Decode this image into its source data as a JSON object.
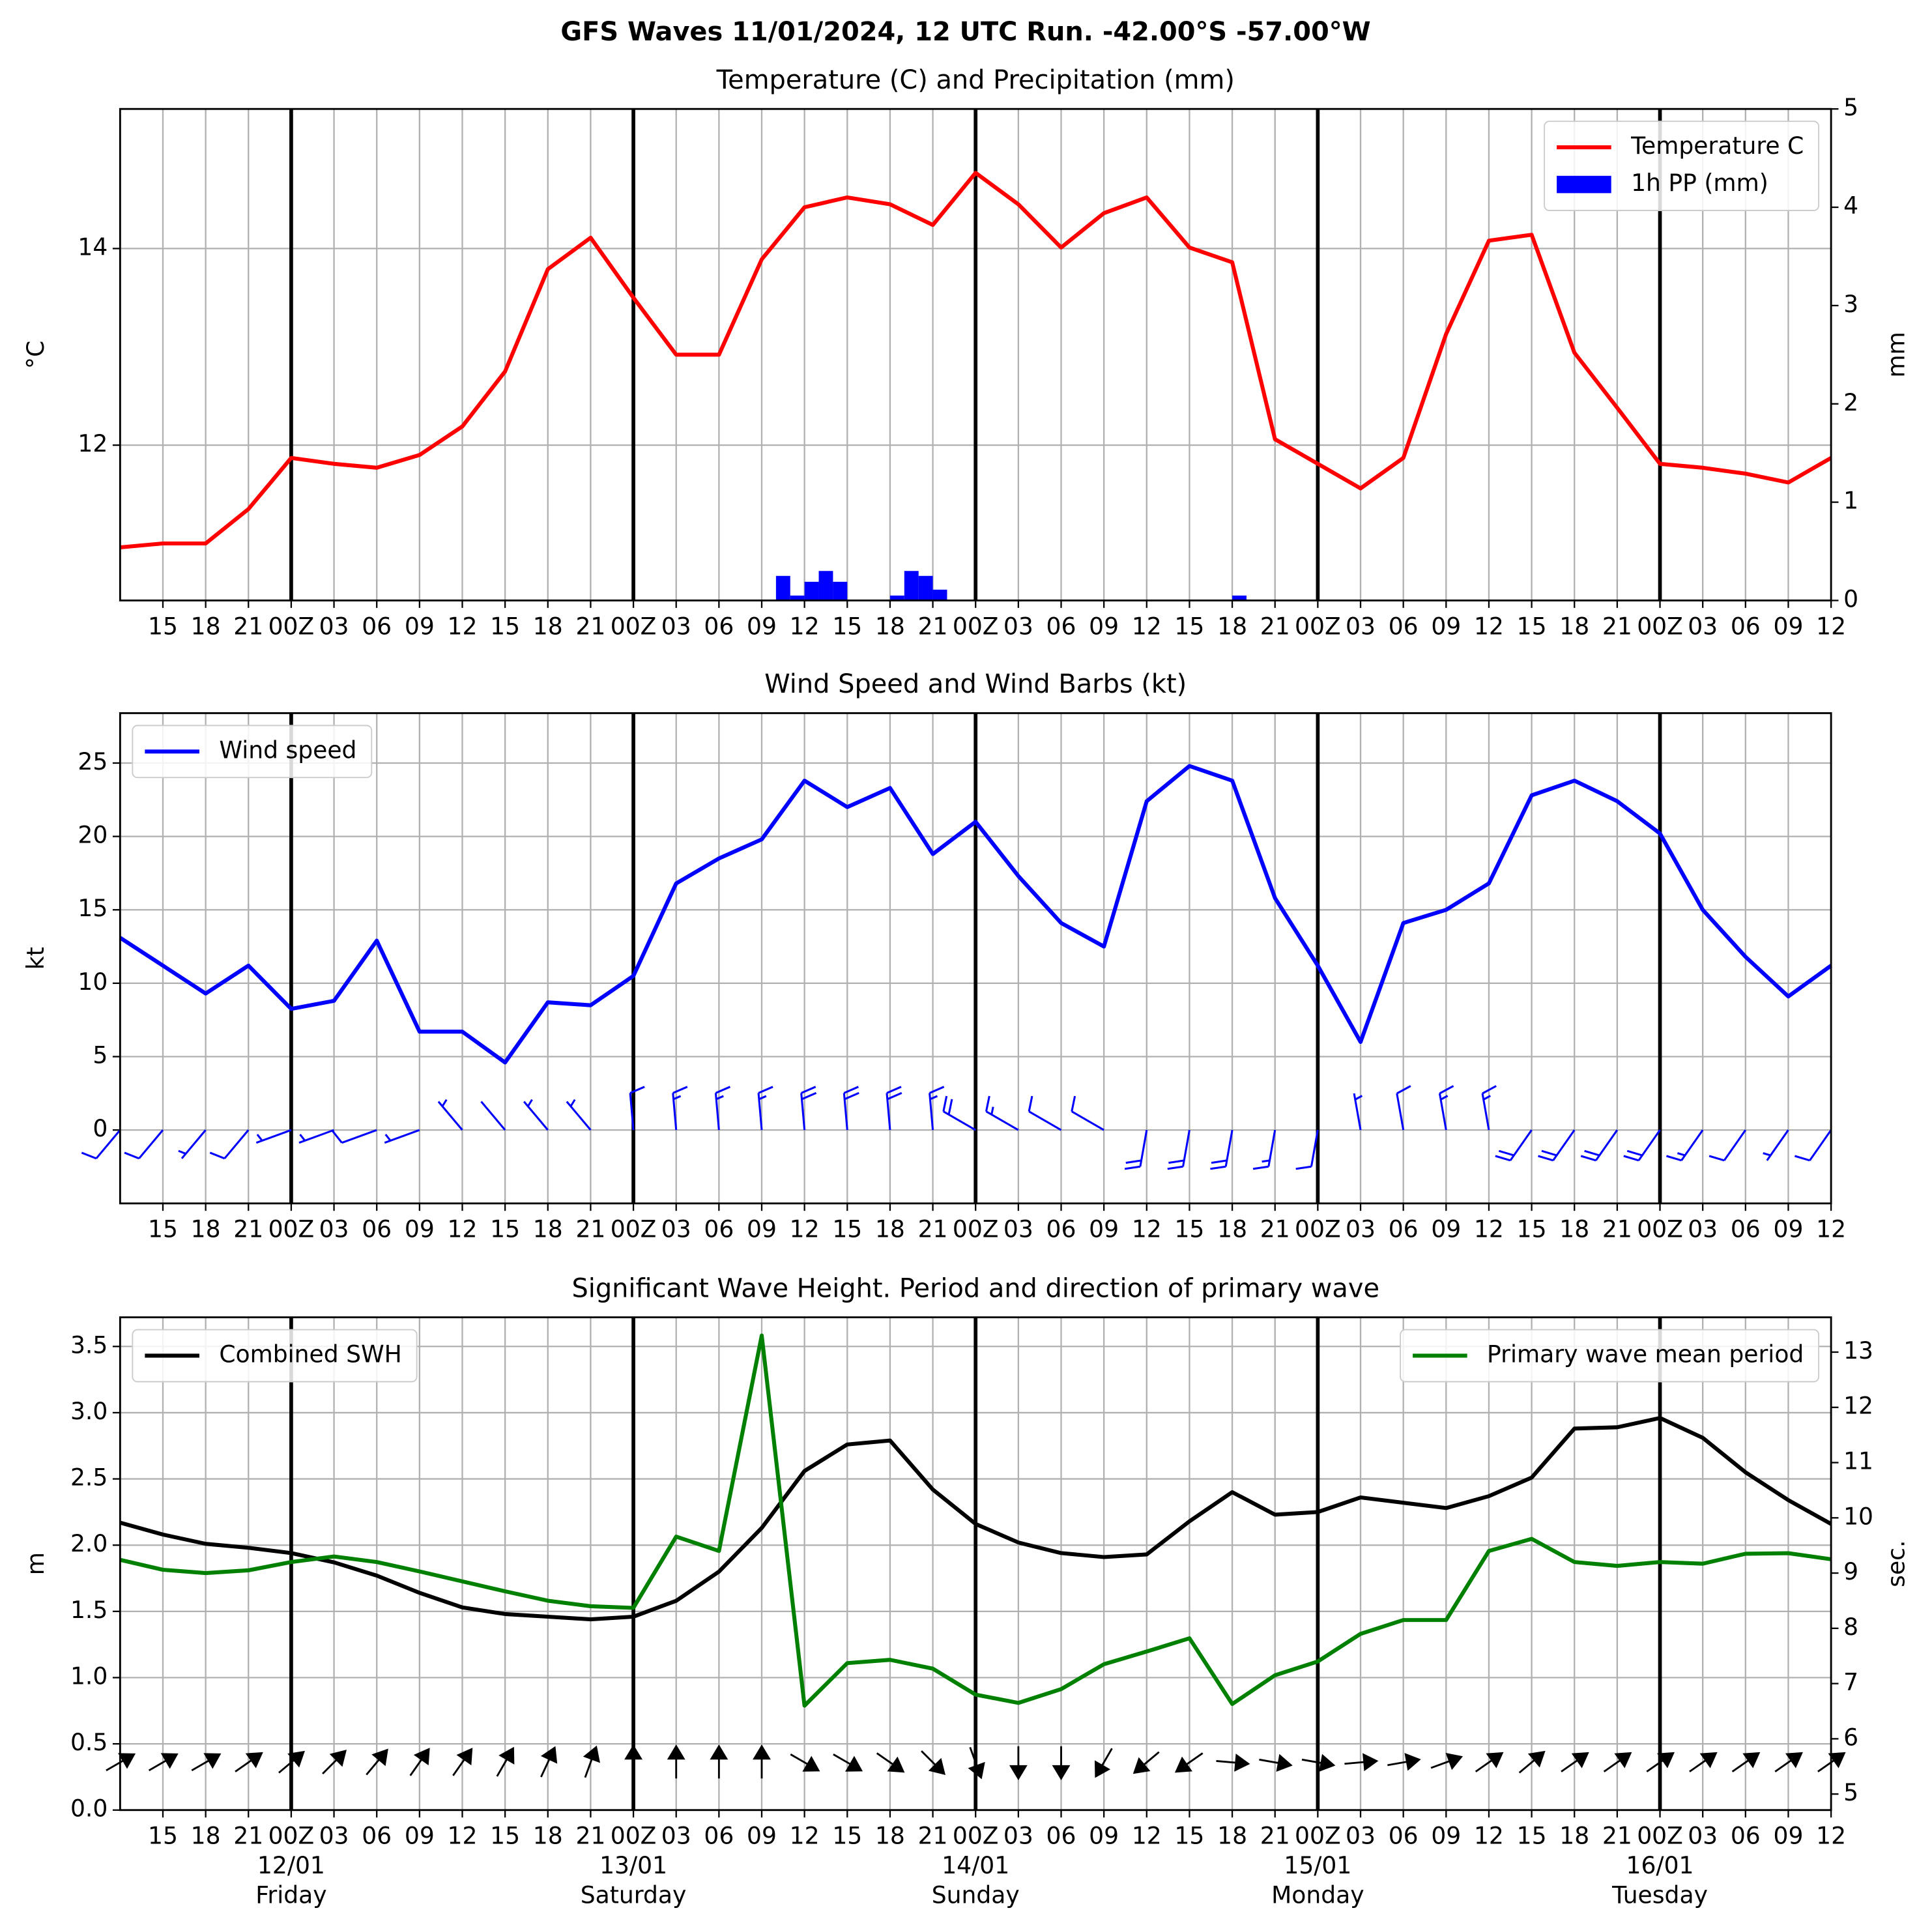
{
  "title": "GFS Waves 11/01/2024, 12 UTC Run. -42.00°S -57.00°W",
  "chart_data": [
    {
      "type": "line",
      "title": "Temperature (C) and Precipitation (mm)",
      "ylabel": "°C",
      "y2label": "mm",
      "x": [
        0,
        3,
        6,
        9,
        12,
        15,
        18,
        21,
        24,
        27,
        30,
        33,
        36,
        39,
        42,
        45,
        48,
        51,
        54,
        57,
        60,
        63,
        66,
        69,
        72,
        75,
        78,
        81,
        84,
        87,
        90,
        93,
        96,
        99,
        102,
        105,
        108,
        111,
        114,
        117,
        120
      ],
      "xlim": [
        0,
        120
      ],
      "xticks": [
        {
          "value": 3,
          "label": "15"
        },
        {
          "value": 6,
          "label": "18"
        },
        {
          "value": 9,
          "label": "21"
        },
        {
          "value": 12,
          "label": "00Z"
        },
        {
          "value": 15,
          "label": "03"
        },
        {
          "value": 18,
          "label": "06"
        },
        {
          "value": 21,
          "label": "09"
        },
        {
          "value": 24,
          "label": "12"
        },
        {
          "value": 27,
          "label": "15"
        },
        {
          "value": 30,
          "label": "18"
        },
        {
          "value": 33,
          "label": "21"
        },
        {
          "value": 36,
          "label": "00Z"
        },
        {
          "value": 39,
          "label": "03"
        },
        {
          "value": 42,
          "label": "06"
        },
        {
          "value": 45,
          "label": "09"
        },
        {
          "value": 48,
          "label": "12"
        },
        {
          "value": 51,
          "label": "15"
        },
        {
          "value": 54,
          "label": "18"
        },
        {
          "value": 57,
          "label": "21"
        },
        {
          "value": 60,
          "label": "00Z"
        },
        {
          "value": 63,
          "label": "03"
        },
        {
          "value": 66,
          "label": "06"
        },
        {
          "value": 69,
          "label": "09"
        },
        {
          "value": 72,
          "label": "12"
        },
        {
          "value": 75,
          "label": "15"
        },
        {
          "value": 78,
          "label": "18"
        },
        {
          "value": 81,
          "label": "21"
        },
        {
          "value": 84,
          "label": "00Z"
        },
        {
          "value": 87,
          "label": "03"
        },
        {
          "value": 90,
          "label": "06"
        },
        {
          "value": 93,
          "label": "09"
        },
        {
          "value": 96,
          "label": "12"
        },
        {
          "value": 99,
          "label": "15"
        },
        {
          "value": 102,
          "label": "18"
        },
        {
          "value": 105,
          "label": "21"
        },
        {
          "value": 108,
          "label": "00Z"
        },
        {
          "value": 111,
          "label": "03"
        },
        {
          "value": 114,
          "label": "06"
        },
        {
          "value": 117,
          "label": "09"
        },
        {
          "value": 120,
          "label": "12"
        }
      ],
      "ylim": [
        10.42,
        15.42
      ],
      "yticks": [
        12,
        14
      ],
      "y2lim": [
        0,
        5
      ],
      "y2ticks": [
        0,
        1,
        2,
        3,
        4,
        5
      ],
      "grid": true,
      "legend": "upper right",
      "series": [
        {
          "name": "Temperature C",
          "color": "#ff0000",
          "type": "line",
          "values": [
            10.96,
            11.0,
            11.0,
            11.35,
            11.87,
            11.81,
            11.77,
            11.9,
            12.19,
            12.75,
            13.79,
            14.11,
            13.5,
            12.92,
            12.92,
            13.89,
            14.42,
            14.52,
            14.45,
            14.24,
            14.77,
            14.45,
            14.01,
            14.36,
            14.52,
            14.01,
            13.86,
            12.06,
            11.81,
            11.56,
            11.87,
            13.13,
            14.08,
            14.14,
            12.94,
            12.38,
            11.81,
            11.77,
            11.71,
            11.62,
            11.87
          ]
        },
        {
          "name": "1h PP (mm)",
          "color": "#0000ff",
          "type": "bar",
          "axis": "y2",
          "x": [
            46,
            47,
            48,
            49,
            50,
            54,
            55,
            56,
            57,
            78
          ],
          "values": [
            0.25,
            0.05,
            0.19,
            0.3,
            0.19,
            0.05,
            0.3,
            0.25,
            0.11,
            0.05
          ]
        }
      ]
    },
    {
      "type": "line",
      "title": "Wind Speed and Wind Barbs (kt)",
      "ylabel": "kt",
      "x": [
        0,
        3,
        6,
        9,
        12,
        15,
        18,
        21,
        24,
        27,
        30,
        33,
        36,
        39,
        42,
        45,
        48,
        51,
        54,
        57,
        60,
        63,
        66,
        69,
        72,
        75,
        78,
        81,
        84,
        87,
        90,
        93,
        96,
        99,
        102,
        105,
        108,
        111,
        114,
        117,
        120
      ],
      "xlim": [
        0,
        120
      ],
      "xticks": [
        {
          "value": 3,
          "label": "15"
        },
        {
          "value": 6,
          "label": "18"
        },
        {
          "value": 9,
          "label": "21"
        },
        {
          "value": 12,
          "label": "00Z"
        },
        {
          "value": 15,
          "label": "03"
        },
        {
          "value": 18,
          "label": "06"
        },
        {
          "value": 21,
          "label": "09"
        },
        {
          "value": 24,
          "label": "12"
        },
        {
          "value": 27,
          "label": "15"
        },
        {
          "value": 30,
          "label": "18"
        },
        {
          "value": 33,
          "label": "21"
        },
        {
          "value": 36,
          "label": "00Z"
        },
        {
          "value": 39,
          "label": "03"
        },
        {
          "value": 42,
          "label": "06"
        },
        {
          "value": 45,
          "label": "09"
        },
        {
          "value": 48,
          "label": "12"
        },
        {
          "value": 51,
          "label": "15"
        },
        {
          "value": 54,
          "label": "18"
        },
        {
          "value": 57,
          "label": "21"
        },
        {
          "value": 60,
          "label": "00Z"
        },
        {
          "value": 63,
          "label": "03"
        },
        {
          "value": 66,
          "label": "06"
        },
        {
          "value": 69,
          "label": "09"
        },
        {
          "value": 72,
          "label": "12"
        },
        {
          "value": 75,
          "label": "15"
        },
        {
          "value": 78,
          "label": "18"
        },
        {
          "value": 81,
          "label": "21"
        },
        {
          "value": 84,
          "label": "00Z"
        },
        {
          "value": 87,
          "label": "03"
        },
        {
          "value": 90,
          "label": "06"
        },
        {
          "value": 93,
          "label": "09"
        },
        {
          "value": 96,
          "label": "12"
        },
        {
          "value": 99,
          "label": "15"
        },
        {
          "value": 102,
          "label": "18"
        },
        {
          "value": 105,
          "label": "21"
        },
        {
          "value": 108,
          "label": "00Z"
        },
        {
          "value": 111,
          "label": "03"
        },
        {
          "value": 114,
          "label": "06"
        },
        {
          "value": 117,
          "label": "09"
        },
        {
          "value": 120,
          "label": "12"
        }
      ],
      "ylim": [
        -5,
        28.4
      ],
      "yticks": [
        0,
        5,
        10,
        15,
        20,
        25
      ],
      "grid": true,
      "legend": "upper left",
      "series": [
        {
          "name": "Wind speed",
          "color": "#0000ff",
          "type": "line",
          "values": [
            13.1,
            11.2,
            9.3,
            11.2,
            8.25,
            8.8,
            12.9,
            6.7,
            6.7,
            4.6,
            8.7,
            8.5,
            10.5,
            16.8,
            18.5,
            19.8,
            23.8,
            22.0,
            23.3,
            18.8,
            21.0,
            17.3,
            14.1,
            12.5,
            22.4,
            24.8,
            23.8,
            15.8,
            11.2,
            6.0,
            14.1,
            15.0,
            16.8,
            22.8,
            23.8,
            22.4,
            20.2,
            15.0,
            11.8,
            9.1,
            11.2
          ],
          "directions": [
            220,
            220,
            220,
            220,
            250,
            250,
            250,
            250,
            320,
            320,
            320,
            320,
            355,
            355,
            355,
            355,
            355,
            355,
            355,
            355,
            300,
            300,
            300,
            300,
            190,
            190,
            190,
            190,
            190,
            350,
            350,
            350,
            350,
            215,
            215,
            215,
            215,
            215,
            215,
            215,
            215
          ]
        }
      ]
    },
    {
      "type": "line",
      "title": "Significant Wave Height. Period and direction of primary wave",
      "ylabel": "m",
      "y2label": "sec.",
      "y2label_color": "#008000",
      "x": [
        0,
        3,
        6,
        9,
        12,
        15,
        18,
        21,
        24,
        27,
        30,
        33,
        36,
        39,
        42,
        45,
        48,
        51,
        54,
        57,
        60,
        63,
        66,
        69,
        72,
        75,
        78,
        81,
        84,
        87,
        90,
        93,
        96,
        99,
        102,
        105,
        108,
        111,
        114,
        117,
        120
      ],
      "xlim": [
        0,
        120
      ],
      "xticks": [
        {
          "value": 3,
          "label": "15"
        },
        {
          "value": 6,
          "label": "18"
        },
        {
          "value": 9,
          "label": "21"
        },
        {
          "value": 12,
          "label": "00Z"
        },
        {
          "value": 15,
          "label": "03"
        },
        {
          "value": 18,
          "label": "06"
        },
        {
          "value": 21,
          "label": "09"
        },
        {
          "value": 24,
          "label": "12"
        },
        {
          "value": 27,
          "label": "15"
        },
        {
          "value": 30,
          "label": "18"
        },
        {
          "value": 33,
          "label": "21"
        },
        {
          "value": 36,
          "label": "00Z"
        },
        {
          "value": 39,
          "label": "03"
        },
        {
          "value": 42,
          "label": "06"
        },
        {
          "value": 45,
          "label": "09"
        },
        {
          "value": 48,
          "label": "12"
        },
        {
          "value": 51,
          "label": "15"
        },
        {
          "value": 54,
          "label": "18"
        },
        {
          "value": 57,
          "label": "21"
        },
        {
          "value": 60,
          "label": "00Z"
        },
        {
          "value": 63,
          "label": "03"
        },
        {
          "value": 66,
          "label": "06"
        },
        {
          "value": 69,
          "label": "09"
        },
        {
          "value": 72,
          "label": "12"
        },
        {
          "value": 75,
          "label": "15"
        },
        {
          "value": 78,
          "label": "18"
        },
        {
          "value": 81,
          "label": "21"
        },
        {
          "value": 84,
          "label": "00Z"
        },
        {
          "value": 87,
          "label": "03"
        },
        {
          "value": 90,
          "label": "06"
        },
        {
          "value": 93,
          "label": "09"
        },
        {
          "value": 96,
          "label": "12"
        },
        {
          "value": 99,
          "label": "15"
        },
        {
          "value": 102,
          "label": "18"
        },
        {
          "value": 105,
          "label": "21"
        },
        {
          "value": 108,
          "label": "00Z"
        },
        {
          "value": 111,
          "label": "03"
        },
        {
          "value": 114,
          "label": "06"
        },
        {
          "value": 117,
          "label": "09"
        },
        {
          "value": 120,
          "label": "12"
        }
      ],
      "ylim": [
        0,
        3.72
      ],
      "yticks": [
        {
          "value": 0,
          "label": "0.0"
        },
        0.5,
        {
          "value": 1,
          "label": "1.0"
        },
        1.5,
        {
          "value": 2,
          "label": "2.0"
        },
        2.5,
        {
          "value": 3,
          "label": "3.0"
        },
        3.5
      ],
      "y2lim": [
        4.71,
        13.63
      ],
      "y2ticks": [
        5,
        6,
        7,
        8,
        9,
        10,
        11,
        12,
        13
      ],
      "grid": true,
      "series": [
        {
          "name": "Combined SWH",
          "color": "#000000",
          "type": "line",
          "legend": "upper left",
          "values": [
            2.17,
            2.08,
            2.01,
            1.98,
            1.94,
            1.87,
            1.77,
            1.64,
            1.53,
            1.48,
            1.46,
            1.44,
            1.46,
            1.58,
            1.8,
            2.13,
            2.56,
            2.76,
            2.79,
            2.42,
            2.16,
            2.02,
            1.94,
            1.91,
            1.93,
            2.18,
            2.4,
            2.23,
            2.25,
            2.36,
            2.32,
            2.28,
            2.37,
            2.51,
            2.88,
            2.89,
            2.96,
            2.81,
            2.55,
            2.34,
            2.16
          ]
        },
        {
          "name": "Primary wave mean period",
          "color": "#008000",
          "type": "line",
          "axis": "y2",
          "legend": "upper right",
          "values": [
            9.24,
            9.06,
            9.0,
            9.05,
            9.2,
            9.3,
            9.2,
            9.03,
            8.85,
            8.67,
            8.5,
            8.4,
            8.37,
            9.66,
            9.4,
            13.3,
            6.6,
            7.37,
            7.43,
            7.27,
            6.8,
            6.65,
            6.9,
            7.35,
            7.58,
            7.82,
            6.63,
            7.15,
            7.4,
            7.9,
            8.15,
            8.15,
            9.4,
            9.62,
            9.2,
            9.13,
            9.2,
            9.17,
            9.35,
            9.36,
            9.25
          ]
        }
      ],
      "wave_direction": [
        60,
        60,
        60,
        55,
        50,
        45,
        40,
        35,
        35,
        30,
        25,
        20,
        0,
        0,
        0,
        0,
        120,
        120,
        125,
        135,
        160,
        180,
        180,
        210,
        230,
        235,
        95,
        100,
        100,
        85,
        80,
        70,
        55,
        50,
        55,
        55,
        55,
        55,
        55,
        55,
        55
      ],
      "day_labels": [
        {
          "value": 12,
          "date": "12/01",
          "day": "Friday"
        },
        {
          "value": 36,
          "date": "13/01",
          "day": "Saturday"
        },
        {
          "value": 60,
          "date": "14/01",
          "day": "Sunday"
        },
        {
          "value": 84,
          "date": "15/01",
          "day": "Monday"
        },
        {
          "value": 108,
          "date": "16/01",
          "day": "Tuesday"
        }
      ]
    }
  ]
}
